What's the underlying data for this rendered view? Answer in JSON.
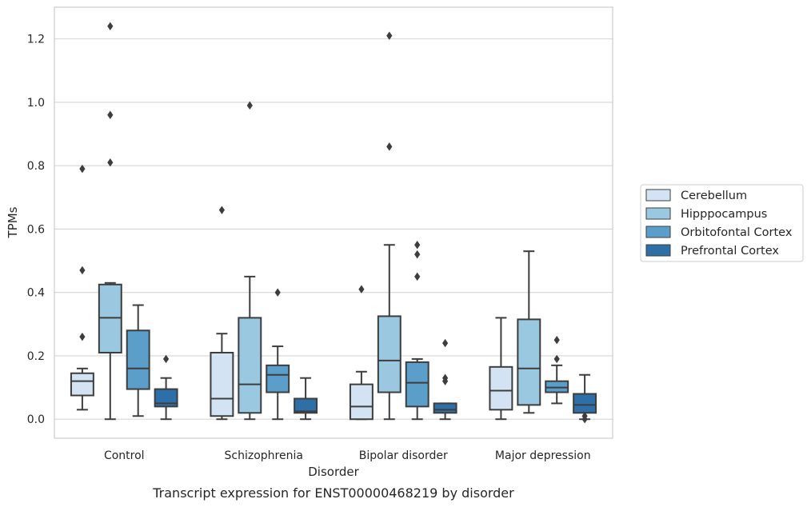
{
  "chart_data": {
    "type": "box",
    "caption": "Transcript expression for ENST00000468219 by disorder",
    "xlabel": "Disorder",
    "ylabel": "TPMs",
    "ylim": [
      -0.06,
      1.3
    ],
    "yticks": [
      0.0,
      0.2,
      0.4,
      0.6,
      0.8,
      1.0,
      1.2
    ],
    "ytick_labels": [
      "0.0",
      "0.2",
      "0.4",
      "0.6",
      "0.8",
      "1.0",
      "1.2"
    ],
    "grid": "horizontal",
    "legend_position": "right",
    "categories": [
      "Control",
      "Schizophrenia",
      "Bipolar disorder",
      "Major depression"
    ],
    "series": [
      {
        "name": "Cerebellum",
        "color": "#d3e3f3",
        "boxes": [
          {
            "whislo": 0.03,
            "q1": 0.075,
            "med": 0.12,
            "q3": 0.145,
            "whishi": 0.16,
            "fliers": [
              0.26,
              0.47,
              0.79
            ]
          },
          {
            "whislo": 0.0,
            "q1": 0.01,
            "med": 0.065,
            "q3": 0.21,
            "whishi": 0.27,
            "fliers": [
              0.66
            ]
          },
          {
            "whislo": 0.0,
            "q1": 0.0,
            "med": 0.04,
            "q3": 0.11,
            "whishi": 0.15,
            "fliers": [
              0.41
            ]
          },
          {
            "whislo": 0.0,
            "q1": 0.03,
            "med": 0.09,
            "q3": 0.165,
            "whishi": 0.32,
            "fliers": []
          }
        ]
      },
      {
        "name": "Hipppocampus",
        "color": "#9ac8e0",
        "boxes": [
          {
            "whislo": 0.0,
            "q1": 0.21,
            "med": 0.32,
            "q3": 0.425,
            "whishi": 0.43,
            "fliers": [
              0.81,
              0.96,
              1.24
            ]
          },
          {
            "whislo": 0.0,
            "q1": 0.02,
            "med": 0.11,
            "q3": 0.32,
            "whishi": 0.45,
            "fliers": [
              0.99
            ]
          },
          {
            "whislo": 0.0,
            "q1": 0.085,
            "med": 0.185,
            "q3": 0.325,
            "whishi": 0.55,
            "fliers": [
              0.86,
              1.21
            ]
          },
          {
            "whislo": 0.02,
            "q1": 0.045,
            "med": 0.16,
            "q3": 0.315,
            "whishi": 0.53,
            "fliers": []
          }
        ]
      },
      {
        "name": "Orbitofontal Cortex",
        "color": "#5a9ec9",
        "boxes": [
          {
            "whislo": 0.01,
            "q1": 0.095,
            "med": 0.16,
            "q3": 0.28,
            "whishi": 0.36,
            "fliers": []
          },
          {
            "whislo": 0.0,
            "q1": 0.085,
            "med": 0.14,
            "q3": 0.17,
            "whishi": 0.23,
            "fliers": [
              0.4
            ]
          },
          {
            "whislo": 0.0,
            "q1": 0.04,
            "med": 0.115,
            "q3": 0.18,
            "whishi": 0.19,
            "fliers": [
              0.45,
              0.52,
              0.55
            ]
          },
          {
            "whislo": 0.05,
            "q1": 0.085,
            "med": 0.1,
            "q3": 0.12,
            "whishi": 0.17,
            "fliers": [
              0.19,
              0.25
            ]
          }
        ]
      },
      {
        "name": "Prefrontal Cortex",
        "color": "#2e6fa8",
        "boxes": [
          {
            "whislo": 0.0,
            "q1": 0.04,
            "med": 0.05,
            "q3": 0.095,
            "whishi": 0.13,
            "fliers": [
              0.19
            ]
          },
          {
            "whislo": 0.0,
            "q1": 0.02,
            "med": 0.025,
            "q3": 0.065,
            "whishi": 0.13,
            "fliers": []
          },
          {
            "whislo": 0.0,
            "q1": 0.02,
            "med": 0.03,
            "q3": 0.05,
            "whishi": 0.05,
            "fliers": [
              0.12,
              0.13,
              0.24
            ]
          },
          {
            "whislo": 0.0,
            "q1": 0.02,
            "med": 0.045,
            "q3": 0.08,
            "whishi": 0.14,
            "fliers": [
              0.0,
              0.01
            ]
          }
        ]
      }
    ]
  }
}
